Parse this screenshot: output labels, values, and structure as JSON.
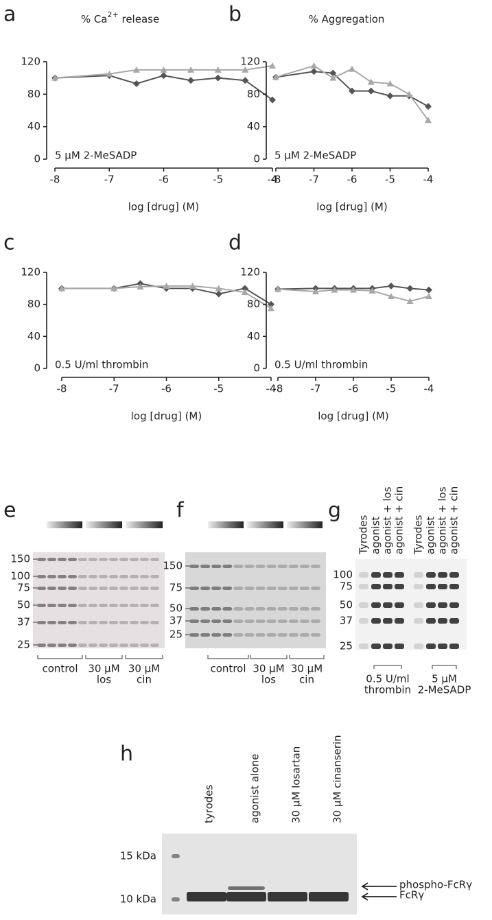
{
  "chart_data": [
    {
      "type": "line",
      "letter": "a",
      "title": {
        "text": "% Ca",
        "sup": "2+",
        "tail": " release"
      },
      "annotation": "5 μM 2-MeSADP",
      "xlabel": "log [drug] (M)",
      "xlim": [
        -8,
        -4
      ],
      "xticks": [
        -8,
        -7,
        -6,
        -5,
        -4
      ],
      "ylim": [
        0,
        120
      ],
      "yticks": [
        0,
        40,
        80,
        120
      ],
      "x": [
        -8,
        -7,
        -6.5,
        -6,
        -5.5,
        -5,
        -4.5,
        -4
      ],
      "series": [
        {
          "color": "#555555",
          "marker": "diamond",
          "values": [
            100,
            103,
            93,
            103,
            97,
            100,
            97,
            73
          ]
        },
        {
          "color": "#a8a8a8",
          "marker": "triangle",
          "values": [
            100,
            105,
            110,
            110,
            110,
            110,
            110,
            115
          ]
        }
      ]
    },
    {
      "type": "line",
      "letter": "b",
      "title": {
        "text": "% Aggregation"
      },
      "annotation": "5 μM 2-MeSADP",
      "xlabel": "log [drug] (M)",
      "xlim": [
        -8,
        -4
      ],
      "xticks": [
        -8,
        -7,
        -6,
        -5,
        -4
      ],
      "ylim": [
        0,
        120
      ],
      "yticks": [
        0,
        40,
        80,
        120
      ],
      "x": [
        -8,
        -7,
        -6.5,
        -6,
        -5.5,
        -5,
        -4.5,
        -4
      ],
      "series": [
        {
          "color": "#555555",
          "marker": "diamond",
          "values": [
            101,
            108,
            106,
            84,
            84,
            78,
            78,
            65
          ]
        },
        {
          "color": "#a8a8a8",
          "marker": "triangle",
          "values": [
            101,
            115,
            100,
            111,
            95,
            93,
            80,
            48
          ]
        }
      ]
    },
    {
      "type": "line",
      "letter": "c",
      "title": {},
      "annotation": "0.5 U/ml thrombin",
      "xlabel": "log [drug] (M)",
      "xlim": [
        -8,
        -4
      ],
      "xticks": [
        -8,
        -7,
        -6,
        -5,
        -4
      ],
      "ylim": [
        0,
        120
      ],
      "yticks": [
        0,
        40,
        80,
        120
      ],
      "x": [
        -8,
        -7,
        -6.5,
        -6,
        -5.5,
        -5,
        -4.5,
        -4
      ],
      "series": [
        {
          "color": "#555555",
          "marker": "diamond",
          "values": [
            100,
            100,
            106,
            100,
            100,
            93,
            100,
            80
          ]
        },
        {
          "color": "#a8a8a8",
          "marker": "triangle",
          "values": [
            100,
            100,
            102,
            103,
            103,
            100,
            95,
            75
          ]
        }
      ]
    },
    {
      "type": "line",
      "letter": "d",
      "title": {},
      "annotation": "0.5 U/ml thrombin",
      "xlabel": "log [drug] (M)",
      "xlim": [
        -8,
        -4
      ],
      "xticks": [
        -8,
        -7,
        -6,
        -5,
        -4
      ],
      "ylim": [
        0,
        120
      ],
      "yticks": [
        0,
        40,
        80,
        120
      ],
      "x": [
        -8,
        -7,
        -6.5,
        -6,
        -5.5,
        -5,
        -4.5,
        -4
      ],
      "series": [
        {
          "color": "#555555",
          "marker": "diamond",
          "values": [
            99,
            100,
            100,
            100,
            100,
            103,
            100,
            98
          ]
        },
        {
          "color": "#a8a8a8",
          "marker": "triangle",
          "values": [
            99,
            96,
            98,
            98,
            97,
            90,
            84,
            90
          ]
        }
      ]
    }
  ],
  "blots": {
    "e": {
      "letter": "e",
      "markers": [
        150,
        100,
        75,
        50,
        37,
        25
      ],
      "groups": [
        [
          "control"
        ],
        [
          "30 μM",
          "los"
        ],
        [
          "30 μM",
          "cin"
        ]
      ]
    },
    "f": {
      "letter": "f",
      "markers": [
        150,
        75,
        50,
        37,
        25
      ],
      "groups": [
        [
          "control"
        ],
        [
          "30 μM",
          "los"
        ],
        [
          "30 μM",
          "cin"
        ]
      ]
    },
    "g": {
      "letter": "g",
      "lanes": [
        "Tyrodes",
        "agonist",
        "agonist + los",
        "agonist + cin",
        "Tyrodes",
        "agonist",
        "agonist + los",
        "agonist + cin"
      ],
      "markers": [
        100,
        75,
        50,
        37,
        25
      ],
      "groups": [
        [
          "0.5 U/ml",
          "thrombin"
        ],
        [
          "5 μM",
          "2-MeSADP"
        ]
      ]
    },
    "h": {
      "letter": "h",
      "lanes": [
        "tyrodes",
        "agonist alone",
        "30 μM losartan",
        "30 μM cinanserin"
      ],
      "markers": [
        "15 kDa",
        "10 kDa"
      ],
      "arrows": [
        "phospho-FcRγ",
        "FcRγ"
      ]
    }
  }
}
